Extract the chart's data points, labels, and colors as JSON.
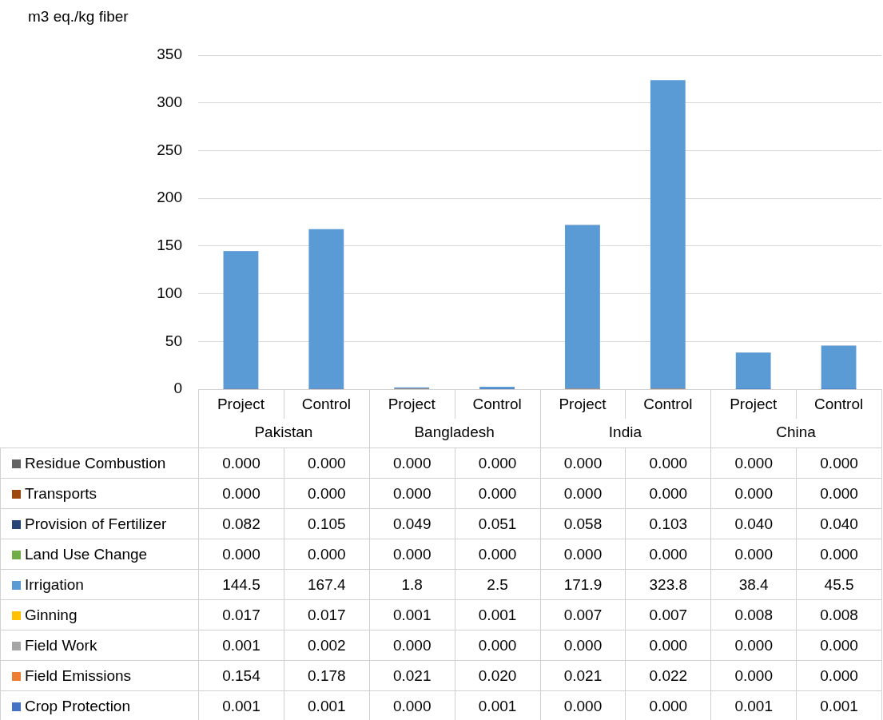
{
  "chart_data": {
    "type": "bar",
    "stacked": true,
    "ylabel": "m3 eq./kg fiber",
    "categories": [
      "Project",
      "Control",
      "Project",
      "Control",
      "Project",
      "Control",
      "Project",
      "Control"
    ],
    "annotations": [
      "Pakistan",
      "Bangladesh",
      "India",
      "China"
    ],
    "ylim": [
      0,
      350
    ],
    "yticks": [
      0,
      50,
      100,
      150,
      200,
      250,
      300,
      350
    ],
    "grid": "y",
    "legend": "bottom",
    "series": [
      {
        "name": "Crop Protection",
        "color": "#4472c4",
        "values": [
          0.001,
          0.001,
          0,
          0.001,
          0,
          0,
          0.001,
          0.001
        ],
        "value_labels": [
          "0.001",
          "0.001",
          "0.000",
          "0.001",
          "0.000",
          "0.000",
          "0.001",
          "0.001"
        ]
      },
      {
        "name": "Field Emissions",
        "color": "#ed7d31",
        "values": [
          0.154,
          0.178,
          0.021,
          0.02,
          0.021,
          0.022,
          0,
          0
        ],
        "value_labels": [
          "0.154",
          "0.178",
          "0.021",
          "0.020",
          "0.021",
          "0.022",
          "0.000",
          "0.000"
        ]
      },
      {
        "name": "Field Work",
        "color": "#a5a5a5",
        "values": [
          0.001,
          0.002,
          0,
          0,
          0,
          0,
          0,
          0
        ],
        "value_labels": [
          "0.001",
          "0.002",
          "0.000",
          "0.000",
          "0.000",
          "0.000",
          "0.000",
          "0.000"
        ]
      },
      {
        "name": "Ginning",
        "color": "#ffc000",
        "values": [
          0.017,
          0.017,
          0.001,
          0.001,
          0.007,
          0.007,
          0.008,
          0.008
        ],
        "value_labels": [
          "0.017",
          "0.017",
          "0.001",
          "0.001",
          "0.007",
          "0.007",
          "0.008",
          "0.008"
        ]
      },
      {
        "name": "Irrigation",
        "color": "#5b9bd5",
        "values": [
          144.5,
          167.4,
          1.8,
          2.5,
          171.9,
          323.8,
          38.4,
          45.5
        ],
        "value_labels": [
          "144.5",
          "167.4",
          "1.8",
          "2.5",
          "171.9",
          "323.8",
          "38.4",
          "45.5"
        ]
      },
      {
        "name": "Land Use Change",
        "color": "#70ad47",
        "values": [
          0,
          0,
          0,
          0,
          0,
          0,
          0,
          0
        ],
        "value_labels": [
          "0.000",
          "0.000",
          "0.000",
          "0.000",
          "0.000",
          "0.000",
          "0.000",
          "0.000"
        ]
      },
      {
        "name": "Provision of Fertilizer",
        "color": "#264478",
        "values": [
          0.082,
          0.105,
          0.049,
          0.051,
          0.058,
          0.103,
          0.04,
          0.04
        ],
        "value_labels": [
          "0.082",
          "0.105",
          "0.049",
          "0.051",
          "0.058",
          "0.103",
          "0.040",
          "0.040"
        ]
      },
      {
        "name": "Transports",
        "color": "#9e480e",
        "values": [
          0,
          0,
          0,
          0,
          0,
          0,
          0,
          0
        ],
        "value_labels": [
          "0.000",
          "0.000",
          "0.000",
          "0.000",
          "0.000",
          "0.000",
          "0.000",
          "0.000"
        ]
      },
      {
        "name": "Residue Combustion",
        "color": "#636363",
        "values": [
          0,
          0,
          0,
          0,
          0,
          0,
          0,
          0
        ],
        "value_labels": [
          "0.000",
          "0.000",
          "0.000",
          "0.000",
          "0.000",
          "0.000",
          "0.000",
          "0.000"
        ]
      }
    ]
  }
}
